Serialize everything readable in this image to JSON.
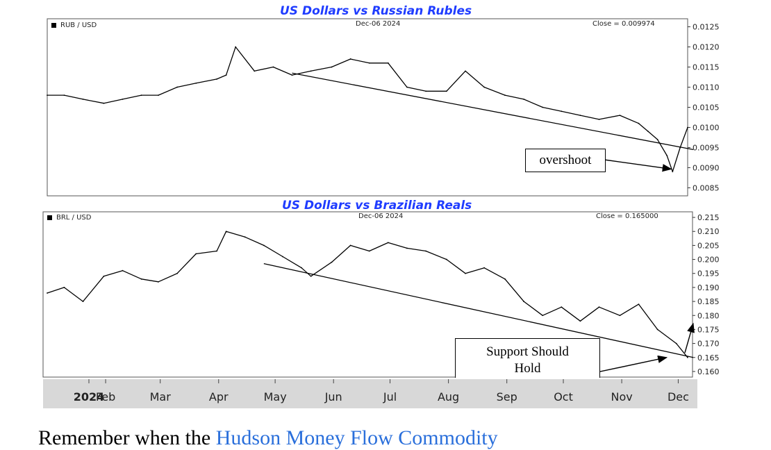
{
  "colors": {
    "title": "#1f3cff",
    "line": "#000000",
    "axis_band": "#d8d8d8",
    "link": "#2a6fdb"
  },
  "chart_data": [
    {
      "type": "line",
      "title": "US Dollars vs Russian Rubles",
      "legend": "RUB / USD",
      "date_label": "Dec-06  2024",
      "close_label": "Close = 0.009974",
      "yticks": [
        "0.0125",
        "0.0120",
        "0.0115",
        "0.0110",
        "0.0105",
        "0.0100",
        "0.0095",
        "0.0090",
        "0.0085"
      ],
      "ylim": [
        0.0083,
        0.0127
      ],
      "x": [
        "2024-01-01",
        "2024-01-10",
        "2024-01-20",
        "2024-01-31",
        "2024-02-10",
        "2024-02-20",
        "2024-02-29",
        "2024-03-10",
        "2024-03-20",
        "2024-03-31",
        "2024-04-05",
        "2024-04-10",
        "2024-04-20",
        "2024-04-30",
        "2024-05-10",
        "2024-05-20",
        "2024-05-31",
        "2024-06-10",
        "2024-06-20",
        "2024-06-30",
        "2024-07-10",
        "2024-07-20",
        "2024-07-31",
        "2024-08-10",
        "2024-08-20",
        "2024-08-31",
        "2024-09-10",
        "2024-09-20",
        "2024-09-30",
        "2024-10-10",
        "2024-10-20",
        "2024-10-31",
        "2024-11-10",
        "2024-11-15",
        "2024-11-20",
        "2024-11-25",
        "2024-11-28",
        "2024-12-02",
        "2024-12-06"
      ],
      "y": [
        0.0108,
        0.0108,
        0.0107,
        0.0106,
        0.0107,
        0.0108,
        0.0108,
        0.011,
        0.0111,
        0.0112,
        0.0113,
        0.012,
        0.0114,
        0.0115,
        0.0113,
        0.0114,
        0.0115,
        0.0117,
        0.0116,
        0.0116,
        0.011,
        0.0109,
        0.0109,
        0.0114,
        0.011,
        0.0108,
        0.0107,
        0.0105,
        0.0104,
        0.0103,
        0.0102,
        0.0103,
        0.0101,
        0.0099,
        0.0097,
        0.0093,
        0.0089,
        0.0095,
        0.01
      ],
      "trendline": {
        "x": [
          "2024-05-10",
          "2024-12-06"
        ],
        "y": [
          0.01135,
          0.00945
        ]
      },
      "annotations": [
        {
          "text": "overshoot",
          "arrow_to": {
            "x": "2024-11-28",
            "y": 0.009
          }
        }
      ]
    },
    {
      "type": "line",
      "title": "US Dollars vs Brazilian Reals",
      "legend": "BRL / USD",
      "date_label": "Dec-06  2024",
      "close_label": "Close = 0.165000",
      "yticks": [
        "0.215",
        "0.210",
        "0.205",
        "0.200",
        "0.195",
        "0.190",
        "0.185",
        "0.180",
        "0.175",
        "0.170",
        "0.165",
        "0.160"
      ],
      "ylim": [
        0.158,
        0.217
      ],
      "x": [
        "2024-01-01",
        "2024-01-10",
        "2024-01-20",
        "2024-01-31",
        "2024-02-10",
        "2024-02-20",
        "2024-02-29",
        "2024-03-10",
        "2024-03-20",
        "2024-03-31",
        "2024-04-05",
        "2024-04-15",
        "2024-04-25",
        "2024-05-05",
        "2024-05-15",
        "2024-05-20",
        "2024-05-31",
        "2024-06-10",
        "2024-06-20",
        "2024-06-30",
        "2024-07-10",
        "2024-07-20",
        "2024-07-31",
        "2024-08-10",
        "2024-08-20",
        "2024-08-31",
        "2024-09-10",
        "2024-09-20",
        "2024-09-30",
        "2024-10-10",
        "2024-10-20",
        "2024-10-31",
        "2024-11-10",
        "2024-11-20",
        "2024-11-30",
        "2024-12-06"
      ],
      "y": [
        0.188,
        0.19,
        0.185,
        0.194,
        0.196,
        0.193,
        0.192,
        0.195,
        0.202,
        0.203,
        0.21,
        0.208,
        0.205,
        0.201,
        0.197,
        0.194,
        0.199,
        0.205,
        0.203,
        0.206,
        0.204,
        0.203,
        0.2,
        0.195,
        0.197,
        0.193,
        0.185,
        0.18,
        0.183,
        0.178,
        0.183,
        0.18,
        0.184,
        0.175,
        0.17,
        0.165
      ],
      "trendline": {
        "x": [
          "2024-04-25",
          "2024-12-06"
        ],
        "y": [
          0.1985,
          0.165
        ]
      },
      "annotations": [
        {
          "text": "Support Should Hold",
          "arrow_to": {
            "x": "2024-11-30",
            "y": 0.1655
          }
        }
      ],
      "xticks": [
        "2024",
        "Feb",
        "Mar",
        "Apr",
        "May",
        "Jun",
        "Jul",
        "Aug",
        "Sep",
        "Oct",
        "Nov",
        "Dec"
      ]
    }
  ],
  "annotation_text": {
    "overshoot": "overshoot",
    "support_line1": "Support Should",
    "support_line2": "Hold"
  },
  "footer": {
    "text": "Remember when the ",
    "link_text": "Hudson Money Flow Commodity"
  }
}
